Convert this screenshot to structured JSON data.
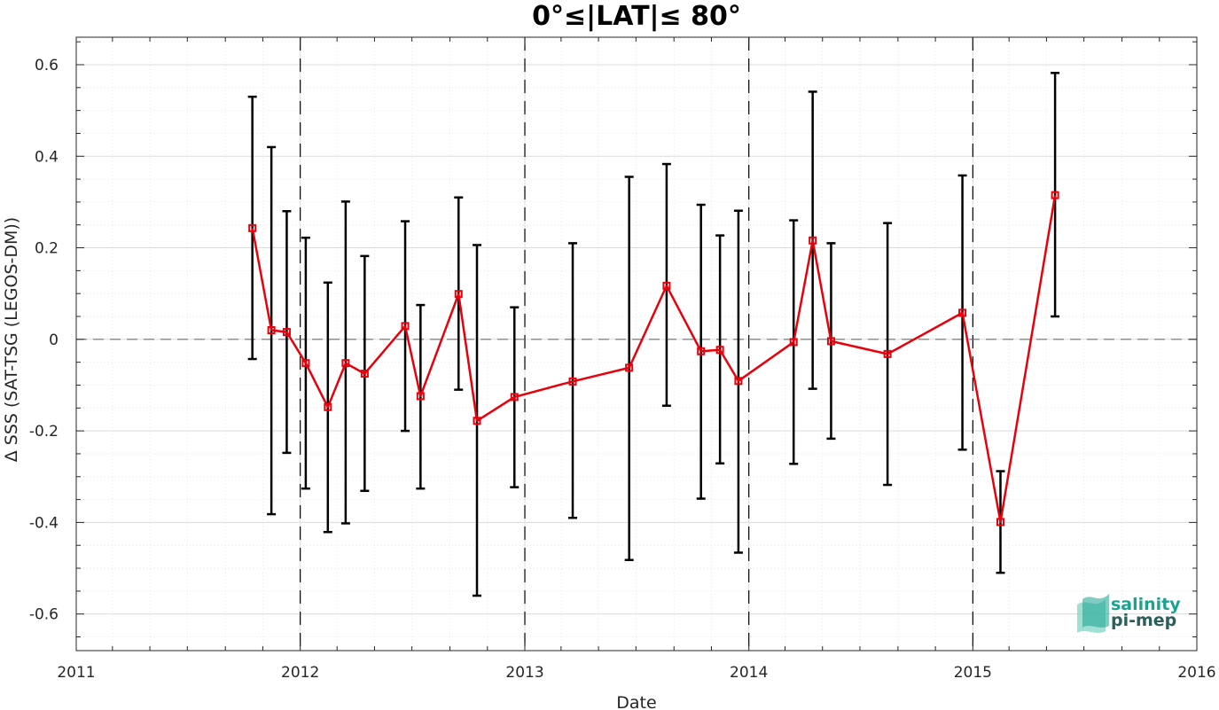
{
  "chart_data": {
    "type": "line",
    "title": "0°≤|LAT|≤ 80°",
    "xlabel": "Date",
    "ylabel": "Δ SSS (SAT-TSG (LEGOS-DM))",
    "xlim": [
      "2011-01-01",
      "2016-01-01"
    ],
    "ylim": [
      -0.68,
      0.66
    ],
    "x_ticks": [
      "2011",
      "2012",
      "2013",
      "2014",
      "2015",
      "2016"
    ],
    "y_ticks": [
      "0.6",
      "0.4",
      "0.2",
      "0",
      "-0.2",
      "-0.4",
      "-0.6"
    ],
    "y_tick_values": [
      0.6,
      0.4,
      0.2,
      0,
      -0.2,
      -0.4,
      -0.6
    ],
    "grid": true,
    "zero_line": 0,
    "year_separators": [
      "2012-01-01",
      "2013-01-01",
      "2014-01-01",
      "2015-01-01"
    ],
    "colors": {
      "series": "#e8000b",
      "error_bars": "#000000",
      "logo": "#1aa38f"
    },
    "series": [
      {
        "x": [
          "2011-10-15",
          "2011-11-15",
          "2011-12-10",
          "2012-01-10",
          "2012-02-15",
          "2012-03-15",
          "2012-04-15",
          "2012-06-20",
          "2012-07-15",
          "2012-09-15",
          "2012-10-15",
          "2012-12-15",
          "2013-03-20",
          "2013-06-20",
          "2013-08-20",
          "2013-10-15",
          "2013-11-15",
          "2013-12-15",
          "2014-03-15",
          "2014-04-15",
          "2014-05-15",
          "2014-08-15",
          "2014-12-15",
          "2015-02-15",
          "2015-05-15"
        ],
        "y": [
          0.243,
          0.02,
          0.016,
          -0.052,
          -0.148,
          -0.052,
          -0.075,
          0.029,
          -0.124,
          0.099,
          -0.178,
          -0.126,
          -0.092,
          -0.062,
          0.117,
          -0.026,
          -0.023,
          -0.091,
          -0.006,
          0.216,
          -0.004,
          -0.032,
          0.058,
          -0.399,
          0.315
        ],
        "err_low": [
          -0.043,
          -0.382,
          -0.248,
          -0.326,
          -0.421,
          -0.402,
          -0.331,
          -0.2,
          -0.326,
          -0.11,
          -0.56,
          -0.323,
          -0.39,
          -0.482,
          -0.145,
          -0.348,
          -0.271,
          -0.466,
          -0.272,
          -0.108,
          -0.217,
          -0.318,
          -0.241,
          -0.51,
          0.05
        ],
        "err_high": [
          0.53,
          0.42,
          0.28,
          0.222,
          0.124,
          0.301,
          0.182,
          0.258,
          0.075,
          0.31,
          0.206,
          0.07,
          0.21,
          0.355,
          0.383,
          0.294,
          0.227,
          0.281,
          0.26,
          0.541,
          0.21,
          0.254,
          0.358,
          -0.288,
          0.582
        ]
      }
    ]
  },
  "logo": {
    "line1": "salinity",
    "line2": "pi-mep"
  }
}
